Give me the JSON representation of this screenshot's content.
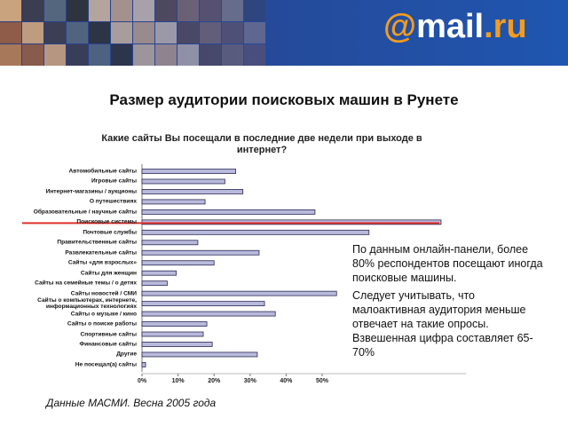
{
  "header": {
    "logo": [
      "@",
      "mail",
      ".ru"
    ]
  },
  "slide_title": "Размер аудитории поисковых машин в Рунете",
  "chart_data": {
    "type": "bar",
    "orientation": "horizontal",
    "title": "Какие сайты Вы посещали в последние две недели при выходе в интернет?",
    "categories": [
      "Автомобильные сайты",
      "Игровые сайты",
      "Интернет-магазины / аукционы",
      "О путешествиях",
      "Образовательные / научные сайты",
      "Поисковые системы",
      "Почтовые службы",
      "Правительственные сайты",
      "Развлекательные сайты",
      "Сайты «для взрослых»",
      "Сайты для женщин",
      "Сайты на семейные темы / о детях",
      "Сайты новостей / СМИ",
      "Сайты о компьютерах, интернете, информационных технологиях",
      "Сайты о музыке / кино",
      "Сайты о поиске работы",
      "Спортивные сайты",
      "Финансовые сайты",
      "Другие",
      "Не посещал(а) сайты"
    ],
    "values": [
      26,
      23,
      28,
      17.5,
      48,
      83,
      63,
      15.5,
      32.5,
      20,
      9.5,
      7,
      54,
      34,
      37,
      18,
      17,
      19.5,
      32,
      1
    ],
    "color": "#b9b9dc",
    "xlim": [
      0,
      90
    ],
    "xticks": [
      {
        "value": 0,
        "label": "0%"
      },
      {
        "value": 10,
        "label": "10%"
      },
      {
        "value": 20,
        "label": "20%"
      },
      {
        "value": 30,
        "label": "30%"
      },
      {
        "value": 40,
        "label": "40%"
      },
      {
        "value": 50,
        "label": "50%"
      }
    ],
    "highlight_index": 5
  },
  "notes": [
    "По данным онлайн-панели, более 80% респондентов посещают иногда поисковые машины.",
    "Следует учитывать, что малоактивная аудитория меньше отвечает на такие опросы. Взвешенная цифра составляет 65-70%"
  ],
  "source": "Данные МАСМИ. Весна 2005 года"
}
